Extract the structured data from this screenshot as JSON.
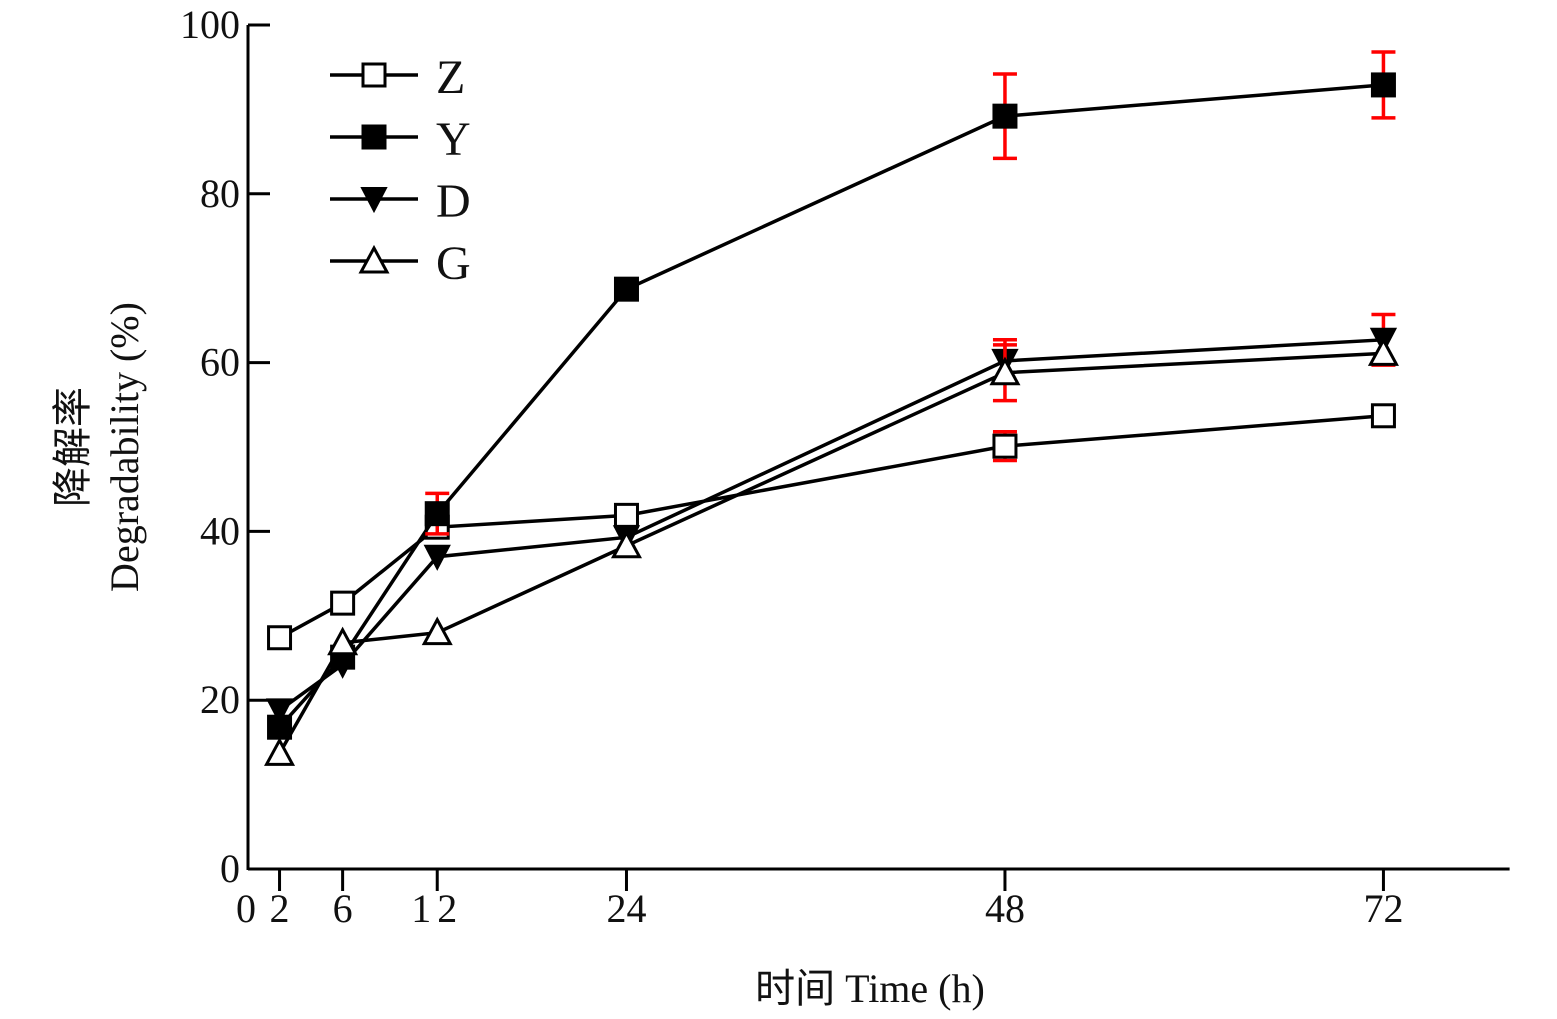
{
  "chart_data": {
    "type": "line",
    "title": "",
    "xlabel": "时间  Time (h)",
    "ylabel_cn": "降解率",
    "ylabel": "Degradability (%)",
    "xlim": [
      0,
      80
    ],
    "ylim": [
      0,
      100
    ],
    "x_ticks": [
      0,
      2,
      6,
      12,
      24,
      48,
      72
    ],
    "y_ticks": [
      0,
      20,
      40,
      60,
      80,
      100
    ],
    "grid": false,
    "legend_position": "top-left",
    "x": [
      2,
      6,
      12,
      24,
      48,
      72
    ],
    "series": [
      {
        "name": "Z",
        "marker": "open-square",
        "values": [
          27.4,
          31.5,
          40.5,
          41.9,
          50.1,
          53.7
        ],
        "errors": [
          0,
          0,
          0,
          0,
          1.7,
          0
        ]
      },
      {
        "name": "Y",
        "marker": "filled-square",
        "values": [
          16.8,
          25.1,
          42.1,
          68.7,
          89.2,
          92.9
        ],
        "errors": [
          0,
          0,
          2.4,
          0,
          5.0,
          3.9
        ]
      },
      {
        "name": "D",
        "marker": "filled-triangle-down",
        "values": [
          18.8,
          24.2,
          37.0,
          39.3,
          60.2,
          62.7
        ],
        "errors": [
          0,
          0,
          0,
          0,
          2.5,
          3.0
        ]
      },
      {
        "name": "G",
        "marker": "open-triangle-up",
        "values": [
          13.7,
          26.8,
          28.0,
          38.3,
          58.8,
          61.1
        ],
        "errors": [
          0,
          0,
          0,
          0,
          3.3,
          0
        ]
      }
    ],
    "colors": {
      "line": "#000000",
      "error_bar": "#ff0000"
    }
  }
}
